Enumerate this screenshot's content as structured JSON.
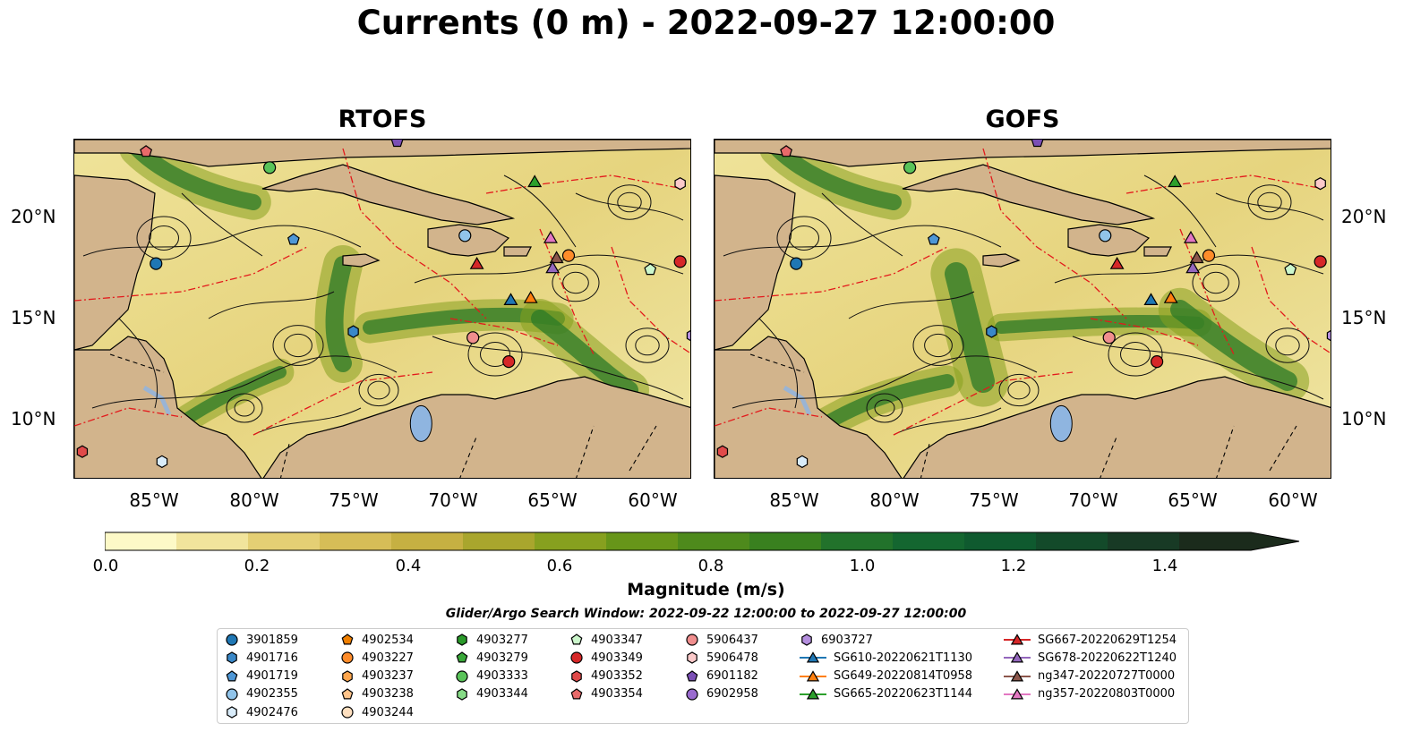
{
  "title": "Currents (0 m) - 2022-09-27 12:00:00",
  "panels": [
    {
      "title": "RTOFS"
    },
    {
      "title": "GOFS"
    }
  ],
  "lat_labels": [
    "20°N",
    "15°N",
    "10°N"
  ],
  "lon_labels": [
    "85°W",
    "80°W",
    "75°W",
    "70°W",
    "65°W",
    "60°W"
  ],
  "colorbar": {
    "label": "Magnitude (m/s)",
    "ticks": [
      "0.0",
      "0.2",
      "0.4",
      "0.6",
      "0.8",
      "1.0",
      "1.2",
      "1.4"
    ],
    "range": [
      0,
      1.6
    ],
    "extend": "max",
    "colors": [
      "#fdf9c7",
      "#f1e49c",
      "#e4cf74",
      "#d6bd57",
      "#c6b042",
      "#a9a62d",
      "#87a01f",
      "#679519",
      "#4e8a1c",
      "#39801f",
      "#22722b",
      "#146630",
      "#0f5a2f",
      "#134a2a",
      "#183a25",
      "#1b2b1c"
    ]
  },
  "search_window": "Glider/Argo Search Window: 2022-09-22 12:00:00 to 2022-09-27 12:00:00",
  "legend": {
    "columns": [
      [
        {
          "label": "3901859",
          "marker": "circle",
          "color": "#1f77b4"
        },
        {
          "label": "4901716",
          "marker": "hexagon",
          "color": "#3a88c8"
        },
        {
          "label": "4901719",
          "marker": "pentagon",
          "color": "#4e97d6"
        },
        {
          "label": "4902355",
          "marker": "circle",
          "color": "#91c4ea"
        },
        {
          "label": "4902476",
          "marker": "hexagon",
          "color": "#d9ecfa"
        }
      ],
      [
        {
          "label": "4902534",
          "marker": "pentagon",
          "color": "#f07f00"
        },
        {
          "label": "4903227",
          "marker": "circle",
          "color": "#ff8c2a"
        },
        {
          "label": "4903237",
          "marker": "hexagon",
          "color": "#ffa64d"
        },
        {
          "label": "4903238",
          "marker": "pentagon",
          "color": "#ffc48a"
        },
        {
          "label": "4903244",
          "marker": "circle",
          "color": "#ffe0c0"
        }
      ],
      [
        {
          "label": "4903277",
          "marker": "hexagon",
          "color": "#2a9a2a"
        },
        {
          "label": "4903279",
          "marker": "pentagon",
          "color": "#3aa83a"
        },
        {
          "label": "4903333",
          "marker": "circle",
          "color": "#59c359"
        },
        {
          "label": "4903344",
          "marker": "hexagon",
          "color": "#86db86"
        }
      ],
      [
        {
          "label": "4903347",
          "marker": "pentagon",
          "color": "#ccf7cc"
        },
        {
          "label": "4903349",
          "marker": "circle",
          "color": "#d62728"
        },
        {
          "label": "4903352",
          "marker": "hexagon",
          "color": "#e04a4a"
        },
        {
          "label": "4903354",
          "marker": "pentagon",
          "color": "#e86a6a"
        }
      ],
      [
        {
          "label": "5906437",
          "marker": "circle",
          "color": "#f08e8e"
        },
        {
          "label": "5906478",
          "marker": "hexagon",
          "color": "#fccaca"
        },
        {
          "label": "6901182",
          "marker": "pentagon",
          "color": "#7b4fb5"
        },
        {
          "label": "6902958",
          "marker": "circle",
          "color": "#9a6bcf"
        }
      ],
      [
        {
          "label": "6903727",
          "marker": "hexagon",
          "color": "#b48ede"
        },
        {
          "label": "SG610-20220621T1130",
          "marker": "triangle",
          "color": "#1f77b4"
        },
        {
          "label": "SG649-20220814T0958",
          "marker": "triangle",
          "color": "#ff7f0e"
        },
        {
          "label": "SG665-20220623T1144",
          "marker": "triangle",
          "color": "#2ca02c"
        }
      ],
      [
        {
          "label": "SG667-20220629T1254",
          "marker": "triangle",
          "color": "#d62728"
        },
        {
          "label": "SG678-20220622T1240",
          "marker": "triangle",
          "color": "#9467bd"
        },
        {
          "label": "ng347-20220727T0000",
          "marker": "triangle",
          "color": "#8c564b"
        },
        {
          "label": "ng357-20220803T0000",
          "marker": "triangle",
          "color": "#e377c2"
        }
      ]
    ]
  },
  "map_extent": {
    "lon": [
      -89.0,
      -58.0
    ],
    "lat": [
      7.0,
      24.0
    ]
  },
  "platforms": [
    {
      "label": "4903354",
      "lon": -85.4,
      "lat": 23.4,
      "marker": "pentagon",
      "color": "#e86a6a"
    },
    {
      "label": "6901182",
      "lon": -72.8,
      "lat": 23.9,
      "marker": "pentagon",
      "color": "#7b4fb5"
    },
    {
      "label": "4903333",
      "lon": -79.2,
      "lat": 22.6,
      "marker": "circle",
      "color": "#59c359"
    },
    {
      "label": "SG665-20220623T1144",
      "lon": -65.9,
      "lat": 21.9,
      "marker": "triangle",
      "color": "#2ca02c"
    },
    {
      "label": "5906478",
      "lon": -58.6,
      "lat": 21.8,
      "marker": "hexagon",
      "color": "#fccaca"
    },
    {
      "label": "4901719",
      "lon": -78.0,
      "lat": 19.0,
      "marker": "pentagon",
      "color": "#4e97d6"
    },
    {
      "label": "4902355",
      "lon": -69.4,
      "lat": 19.2,
      "marker": "circle",
      "color": "#91c4ea"
    },
    {
      "label": "ng357-20220803T0000",
      "lon": -65.1,
      "lat": 19.1,
      "marker": "triangle",
      "color": "#e377c2"
    },
    {
      "label": "3901859",
      "lon": -84.9,
      "lat": 17.8,
      "marker": "circle",
      "color": "#1f77b4"
    },
    {
      "label": "SG667-20220629T1254",
      "lon": -68.8,
      "lat": 17.8,
      "marker": "triangle",
      "color": "#d62728"
    },
    {
      "label": "ng347-20220727T0000",
      "lon": -64.8,
      "lat": 18.1,
      "marker": "triangle",
      "color": "#8c564b"
    },
    {
      "label": "SG678-20220622T1240",
      "lon": -65.0,
      "lat": 17.6,
      "marker": "triangle",
      "color": "#9467bd"
    },
    {
      "label": "4903227",
      "lon": -64.2,
      "lat": 18.2,
      "marker": "circle",
      "color": "#ff8c2a"
    },
    {
      "label": "4903347",
      "lon": -60.1,
      "lat": 17.5,
      "marker": "pentagon",
      "color": "#ccf7cc"
    },
    {
      "label": "4903349",
      "lon": -58.6,
      "lat": 17.9,
      "marker": "circle",
      "color": "#d62728"
    },
    {
      "label": "SG610-20220621T1130",
      "lon": -67.1,
      "lat": 16.0,
      "marker": "triangle",
      "color": "#1f77b4"
    },
    {
      "label": "SG649-20220814T0958",
      "lon": -66.1,
      "lat": 16.1,
      "marker": "triangle",
      "color": "#ff7f0e"
    },
    {
      "label": "6903727",
      "lon": -58.0,
      "lat": 14.2,
      "marker": "hexagon",
      "color": "#b48ede"
    },
    {
      "label": "4903352",
      "lon": -88.6,
      "lat": 8.4,
      "marker": "hexagon",
      "color": "#e04a4a"
    },
    {
      "label": "4902476",
      "lon": -84.6,
      "lat": 7.9,
      "marker": "hexagon",
      "color": "#d9ecfa"
    }
  ],
  "panel_specific": [
    [
      {
        "label": "4901716",
        "lon": -75.0,
        "lat": 14.4,
        "marker": "hexagon",
        "color": "#3a88c8"
      },
      {
        "label": "5906437",
        "lon": -69.0,
        "lat": 14.1,
        "marker": "circle",
        "color": "#f08e8e"
      },
      {
        "label": "4903349",
        "lon": -67.2,
        "lat": 12.9,
        "marker": "circle",
        "color": "#d62728"
      }
    ],
    [
      {
        "label": "4901716",
        "lon": -75.1,
        "lat": 14.4,
        "marker": "hexagon",
        "color": "#3a88c8"
      },
      {
        "label": "5906437",
        "lon": -69.2,
        "lat": 14.1,
        "marker": "circle",
        "color": "#f08e8e"
      },
      {
        "label": "4903349",
        "lon": -66.8,
        "lat": 12.9,
        "marker": "circle",
        "color": "#d62728"
      }
    ]
  ]
}
